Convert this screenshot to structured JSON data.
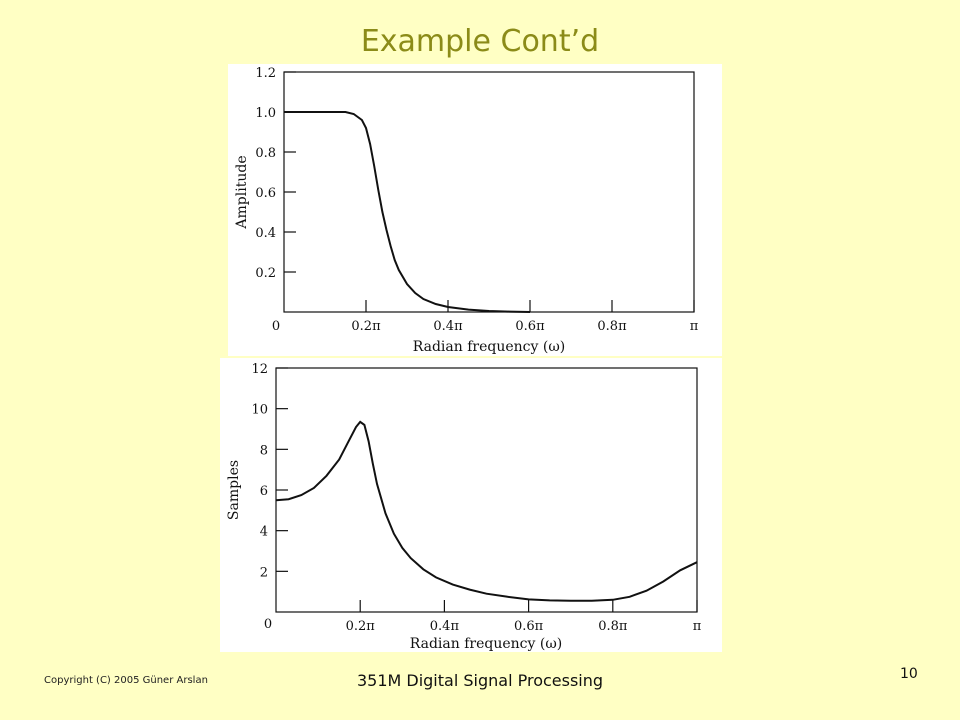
{
  "slide": {
    "title": "Example Cont’d",
    "copyright": "Copyright (C) 2005 Güner Arslan",
    "course": "351M Digital Signal Processing",
    "page_number": "10",
    "background_color": "#ffffc4",
    "title_color": "#8b8b18"
  },
  "chart_data": [
    {
      "type": "line",
      "title": "",
      "xlabel": "Radian frequency (ω)",
      "ylabel": "Amplitude",
      "xlim": [
        0,
        1
      ],
      "ylim": [
        0,
        1.2
      ],
      "x_unit": "π",
      "xticks": [
        {
          "value": 0,
          "label": "0"
        },
        {
          "value": 0.2,
          "label": "0.2π"
        },
        {
          "value": 0.4,
          "label": "0.4π"
        },
        {
          "value": 0.6,
          "label": "0.6π"
        },
        {
          "value": 0.8,
          "label": "0.8π"
        },
        {
          "value": 1.0,
          "label": "π"
        }
      ],
      "yticks": [
        {
          "value": 0.2,
          "label": "0.2"
        },
        {
          "value": 0.4,
          "label": "0.4"
        },
        {
          "value": 0.6,
          "label": "0.6"
        },
        {
          "value": 0.8,
          "label": "0.8"
        },
        {
          "value": 1.0,
          "label": "1.0"
        },
        {
          "value": 1.2,
          "label": "1.2"
        }
      ],
      "origin_label": "0",
      "grid": false,
      "series": [
        {
          "x": [
            0,
            0.05,
            0.1,
            0.15,
            0.17,
            0.19,
            0.2,
            0.21,
            0.22,
            0.23,
            0.24,
            0.25,
            0.26,
            0.27,
            0.28,
            0.3,
            0.32,
            0.34,
            0.37,
            0.4,
            0.45,
            0.5,
            0.55,
            0.6
          ],
          "y": [
            1.0,
            1.0,
            1.0,
            1.0,
            0.99,
            0.96,
            0.92,
            0.84,
            0.73,
            0.61,
            0.5,
            0.41,
            0.33,
            0.26,
            0.21,
            0.14,
            0.095,
            0.065,
            0.04,
            0.025,
            0.012,
            0.005,
            0.002,
            0.0
          ]
        }
      ]
    },
    {
      "type": "line",
      "title": "",
      "xlabel": "Radian frequency (ω)",
      "ylabel": "Samples",
      "xlim": [
        0,
        1
      ],
      "ylim": [
        0,
        12
      ],
      "x_unit": "π",
      "xticks": [
        {
          "value": 0,
          "label": "0"
        },
        {
          "value": 0.2,
          "label": "0.2π"
        },
        {
          "value": 0.4,
          "label": "0.4π"
        },
        {
          "value": 0.6,
          "label": "0.6π"
        },
        {
          "value": 0.8,
          "label": "0.8π"
        },
        {
          "value": 1.0,
          "label": "π"
        }
      ],
      "yticks": [
        {
          "value": 2,
          "label": "2"
        },
        {
          "value": 4,
          "label": "4"
        },
        {
          "value": 6,
          "label": "6"
        },
        {
          "value": 8,
          "label": "8"
        },
        {
          "value": 10,
          "label": "10"
        },
        {
          "value": 12,
          "label": "12"
        }
      ],
      "origin_label": "0",
      "grid": false,
      "series": [
        {
          "x": [
            0,
            0.03,
            0.06,
            0.09,
            0.12,
            0.15,
            0.17,
            0.19,
            0.2,
            0.21,
            0.22,
            0.23,
            0.24,
            0.26,
            0.28,
            0.3,
            0.32,
            0.35,
            0.38,
            0.42,
            0.46,
            0.5,
            0.55,
            0.6,
            0.65,
            0.7,
            0.75,
            0.8,
            0.84,
            0.88,
            0.92,
            0.96,
            1.0
          ],
          "y": [
            5.5,
            5.55,
            5.75,
            6.1,
            6.7,
            7.5,
            8.3,
            9.1,
            9.35,
            9.2,
            8.4,
            7.3,
            6.3,
            4.85,
            3.85,
            3.15,
            2.65,
            2.1,
            1.7,
            1.35,
            1.1,
            0.9,
            0.75,
            0.62,
            0.57,
            0.55,
            0.55,
            0.6,
            0.75,
            1.05,
            1.5,
            2.05,
            2.45
          ]
        }
      ]
    }
  ]
}
